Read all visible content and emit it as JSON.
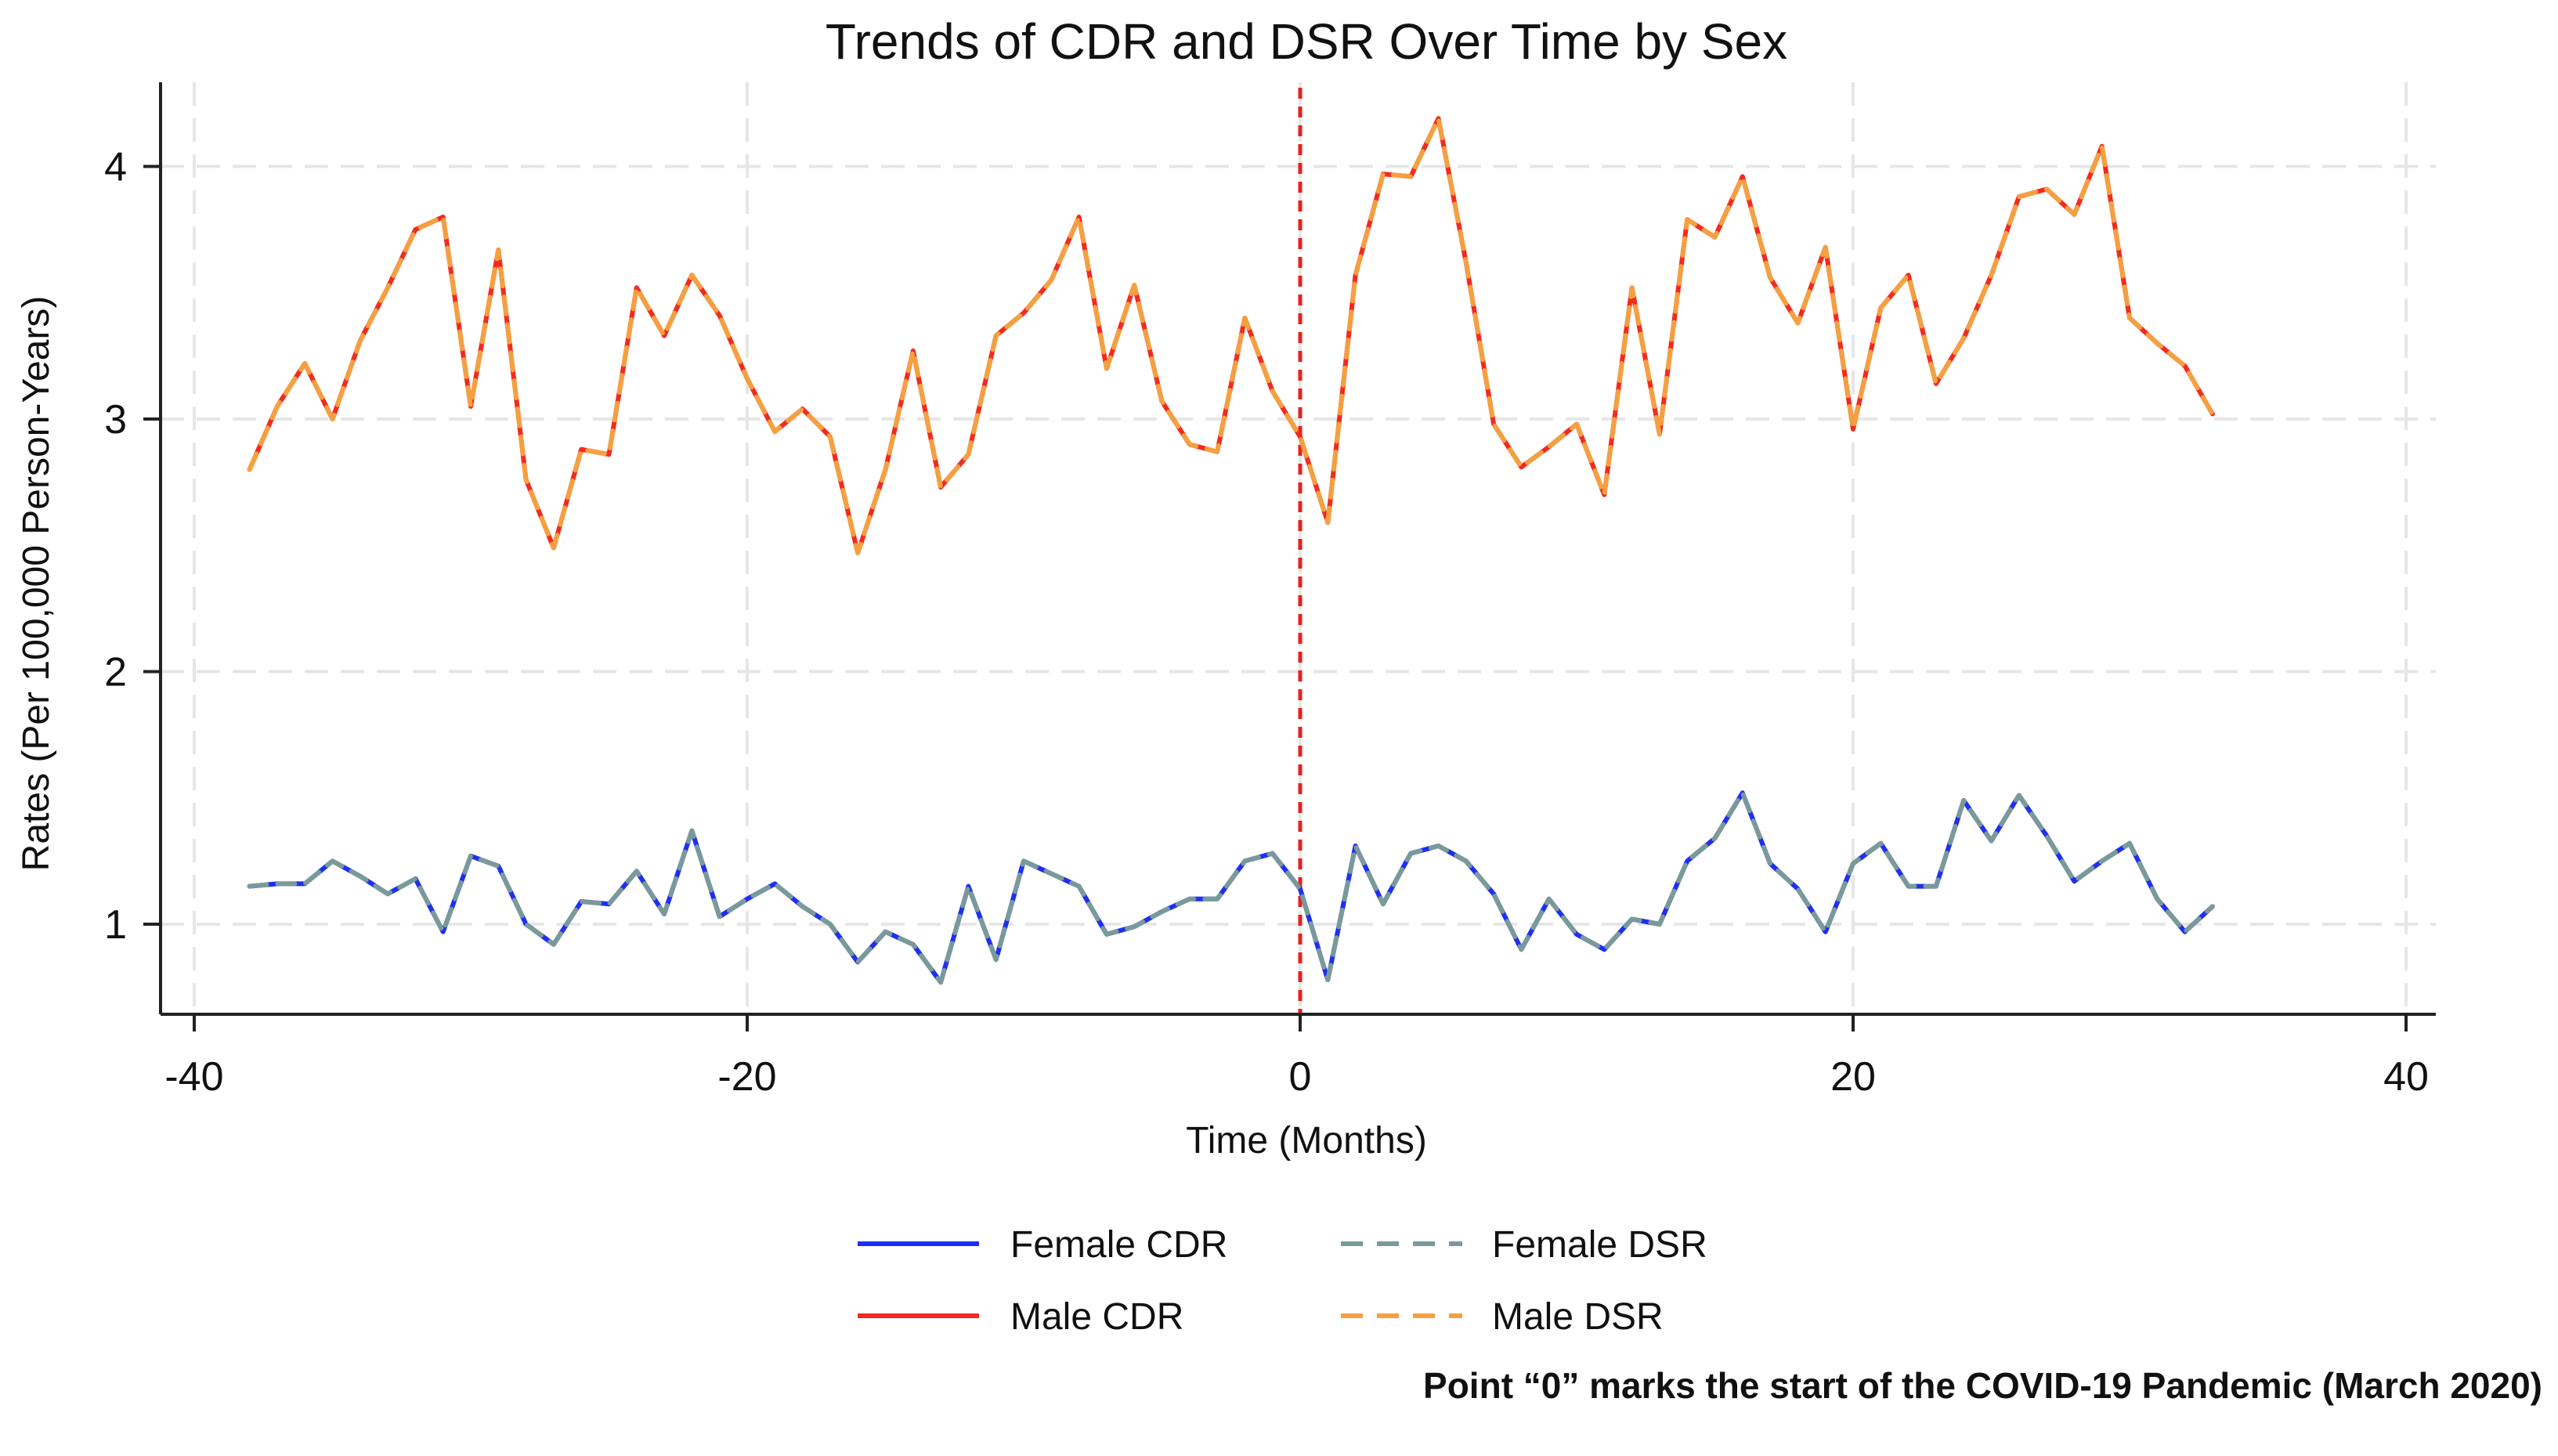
{
  "chart_data": {
    "type": "line",
    "title": "Trends of CDR and DSR Over Time by Sex",
    "xlabel": "Time (Months)",
    "ylabel": "Rates (Per 100,000 Person-Years)",
    "xlim": [
      -41,
      41
    ],
    "ylim": [
      0.72,
      4.35
    ],
    "xticks": [
      -40,
      -20,
      0,
      20,
      40
    ],
    "yticks": [
      1,
      2,
      3,
      4
    ],
    "grid": true,
    "reference_line": {
      "x": 0,
      "color": "#e8201c",
      "style": "dashed"
    },
    "x": [
      -38,
      -37,
      -36,
      -35,
      -34,
      -33,
      -32,
      -31,
      -30,
      -29,
      -28,
      -27,
      -26,
      -25,
      -24,
      -23,
      -22,
      -21,
      -20,
      -19,
      -18,
      -17,
      -16,
      -15,
      -14,
      -13,
      -12,
      -11,
      -10,
      -9,
      -8,
      -7,
      -6,
      -5,
      -4,
      -3,
      -2,
      -1,
      0,
      1,
      2,
      3,
      4,
      5,
      6,
      7,
      8,
      9,
      10,
      11,
      12,
      13,
      14,
      15,
      16,
      17,
      18,
      19,
      20,
      21,
      22,
      23,
      24,
      25,
      26,
      27,
      28,
      29,
      30,
      31,
      32,
      33
    ],
    "series": [
      {
        "name": "Female CDR",
        "color": "#1f2ff0",
        "dash": "solid",
        "values": [
          1.15,
          1.16,
          1.16,
          1.25,
          1.19,
          1.12,
          1.18,
          0.97,
          1.27,
          1.23,
          1.0,
          0.92,
          1.09,
          1.08,
          1.21,
          1.04,
          1.37,
          1.03,
          1.1,
          1.16,
          1.07,
          1.0,
          0.85,
          0.97,
          0.92,
          0.77,
          1.15,
          0.86,
          1.25,
          1.2,
          1.15,
          0.96,
          0.99,
          1.05,
          1.1,
          1.1,
          1.25,
          1.28,
          1.14,
          0.78,
          1.31,
          1.08,
          1.28,
          1.31,
          1.25,
          1.12,
          0.9,
          1.1,
          0.96,
          0.9,
          1.02,
          1.0,
          1.25,
          1.34,
          1.52,
          1.24,
          1.14,
          0.97,
          1.24,
          1.32,
          1.15,
          1.15,
          1.49,
          1.33,
          1.51,
          1.35,
          1.17,
          1.25,
          1.32,
          1.1,
          0.97,
          1.07
        ]
      },
      {
        "name": "Female DSR",
        "color": "#7a9a9a",
        "dash": "dashed",
        "values": [
          1.15,
          1.16,
          1.16,
          1.25,
          1.19,
          1.12,
          1.18,
          0.97,
          1.27,
          1.23,
          1.0,
          0.92,
          1.09,
          1.08,
          1.21,
          1.04,
          1.37,
          1.03,
          1.1,
          1.16,
          1.07,
          1.0,
          0.85,
          0.97,
          0.92,
          0.77,
          1.15,
          0.86,
          1.25,
          1.2,
          1.15,
          0.96,
          0.99,
          1.05,
          1.1,
          1.1,
          1.25,
          1.28,
          1.14,
          0.78,
          1.31,
          1.08,
          1.28,
          1.31,
          1.25,
          1.12,
          0.9,
          1.1,
          0.96,
          0.9,
          1.02,
          1.0,
          1.25,
          1.34,
          1.52,
          1.24,
          1.14,
          0.97,
          1.24,
          1.32,
          1.15,
          1.15,
          1.49,
          1.33,
          1.51,
          1.35,
          1.17,
          1.25,
          1.32,
          1.1,
          0.97,
          1.07
        ]
      },
      {
        "name": "Male CDR",
        "color": "#f22a20",
        "dash": "solid",
        "values": [
          2.8,
          3.05,
          3.22,
          3.0,
          3.31,
          3.52,
          3.75,
          3.8,
          3.05,
          3.67,
          2.76,
          2.49,
          2.88,
          2.86,
          3.52,
          3.33,
          3.57,
          3.41,
          3.16,
          2.95,
          3.04,
          2.93,
          2.47,
          2.8,
          3.27,
          2.73,
          2.86,
          3.33,
          3.42,
          3.55,
          3.8,
          3.2,
          3.53,
          3.07,
          2.9,
          2.87,
          3.4,
          3.11,
          2.93,
          2.59,
          3.57,
          3.97,
          3.96,
          4.19,
          3.62,
          2.98,
          2.81,
          2.89,
          2.98,
          2.7,
          3.52,
          2.94,
          3.79,
          3.72,
          3.96,
          3.56,
          3.38,
          3.68,
          2.96,
          3.44,
          3.57,
          3.14,
          3.32,
          3.57,
          3.88,
          3.91,
          3.81,
          4.08,
          3.4,
          3.3,
          3.21,
          3.02
        ]
      },
      {
        "name": "Male DSR",
        "color": "#f5a040",
        "dash": "dashed",
        "values": [
          2.8,
          3.05,
          3.22,
          3.0,
          3.31,
          3.52,
          3.75,
          3.8,
          3.05,
          3.67,
          2.76,
          2.49,
          2.88,
          2.86,
          3.52,
          3.33,
          3.57,
          3.41,
          3.16,
          2.95,
          3.04,
          2.93,
          2.47,
          2.8,
          3.27,
          2.73,
          2.86,
          3.33,
          3.42,
          3.55,
          3.8,
          3.2,
          3.53,
          3.07,
          2.9,
          2.87,
          3.4,
          3.11,
          2.93,
          2.59,
          3.57,
          3.97,
          3.96,
          4.19,
          3.62,
          2.98,
          2.81,
          2.89,
          2.98,
          2.7,
          3.52,
          2.94,
          3.79,
          3.72,
          3.96,
          3.56,
          3.38,
          3.68,
          2.96,
          3.44,
          3.57,
          3.14,
          3.32,
          3.57,
          3.88,
          3.91,
          3.81,
          4.08,
          3.4,
          3.3,
          3.21,
          3.02
        ]
      }
    ],
    "legend": [
      "Female CDR",
      "Female DSR",
      "Male CDR",
      "Male DSR"
    ],
    "legend_placement": "bottom-center",
    "annotation": "Point “0” marks the start of the COVID-19 Pandemic (March 2020)"
  }
}
